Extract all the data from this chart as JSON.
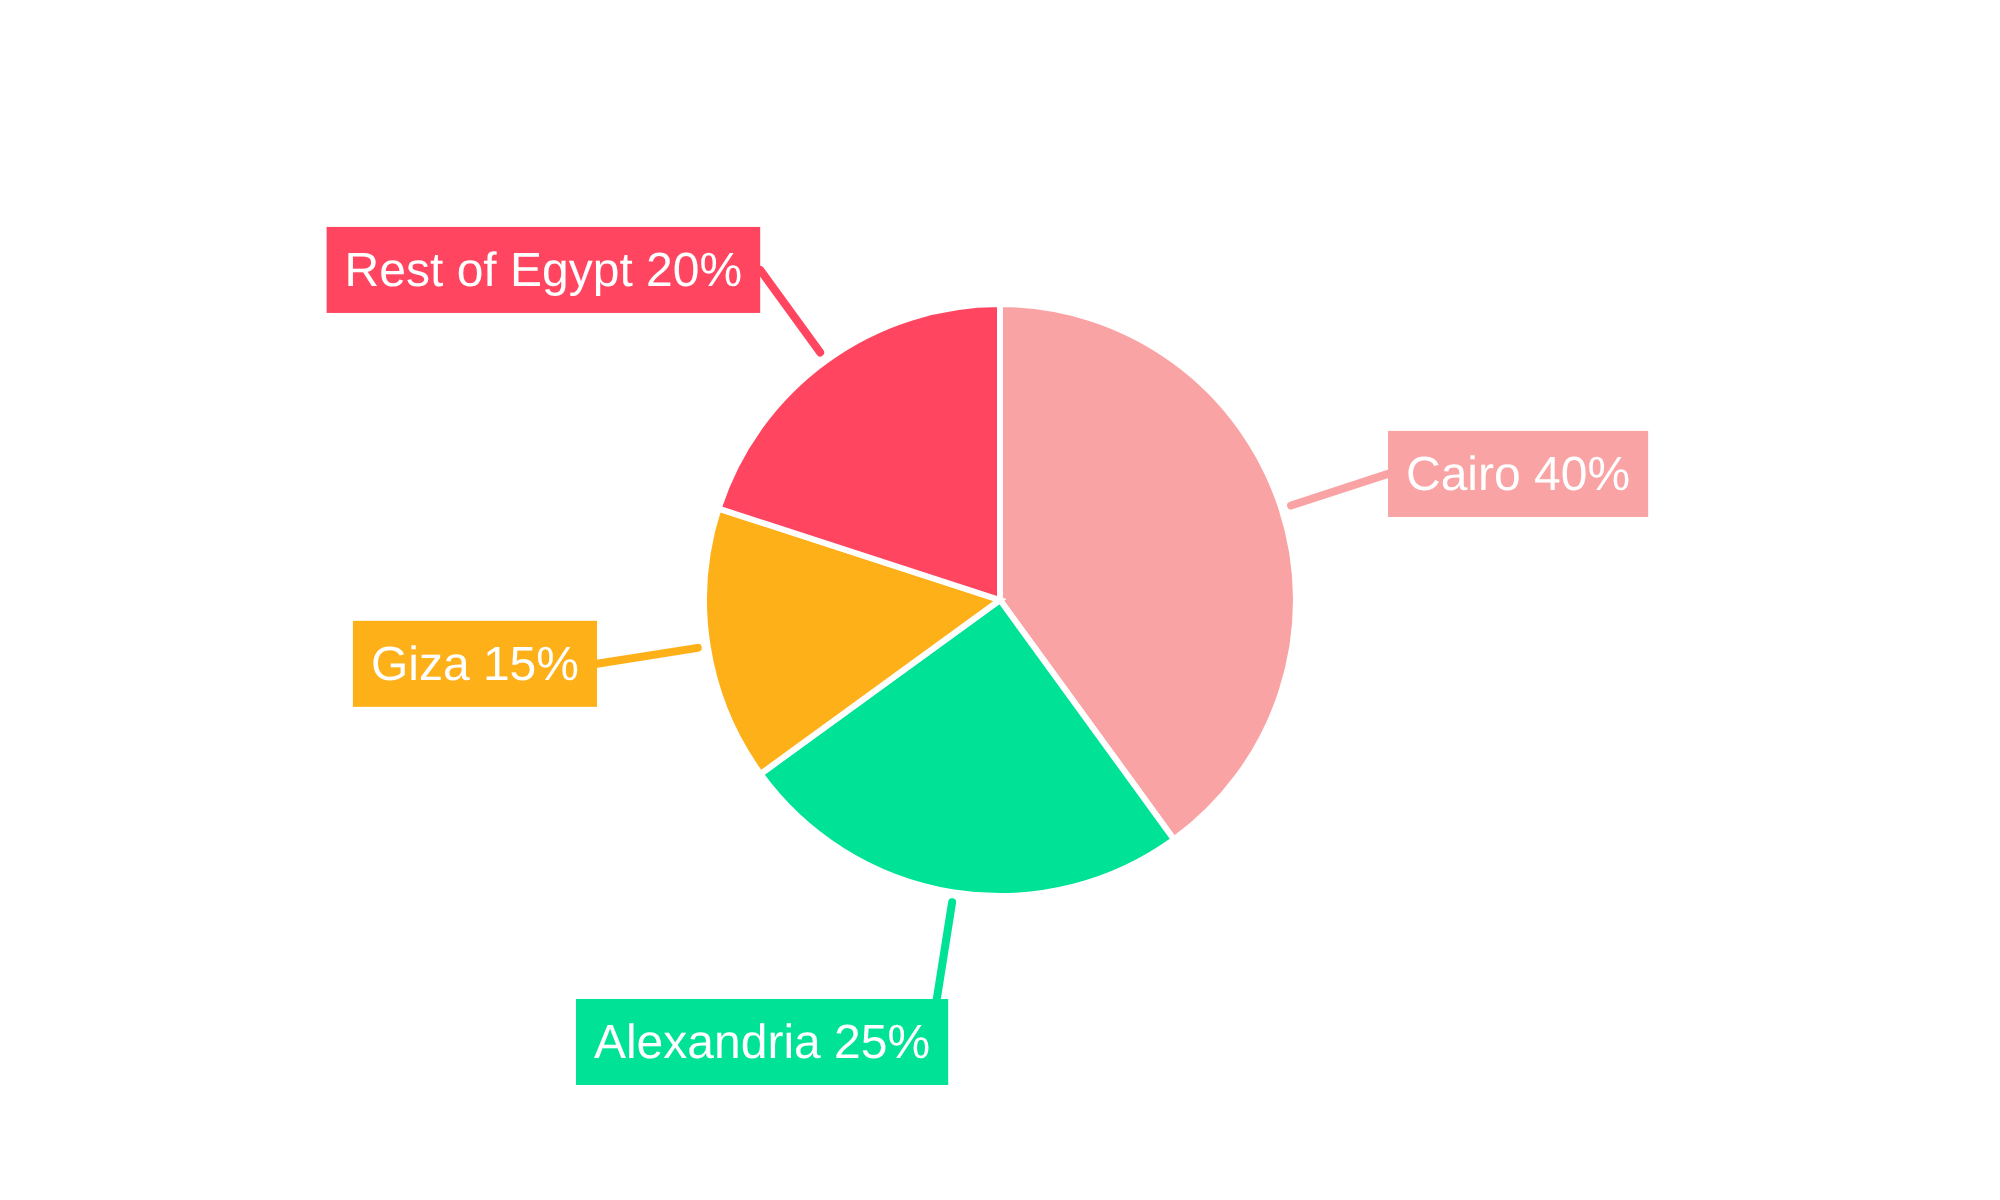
{
  "chart_data": {
    "type": "pie",
    "categories": [
      "Cairo",
      "Alexandria",
      "Giza",
      "Rest of Egypt"
    ],
    "values": [
      40,
      25,
      15,
      20
    ],
    "value_labels": [
      "40%",
      "25%",
      "15%",
      "20%"
    ],
    "colors": [
      "#f9a3a4",
      "#00e396",
      "#feb019",
      "#ff4560"
    ]
  }
}
